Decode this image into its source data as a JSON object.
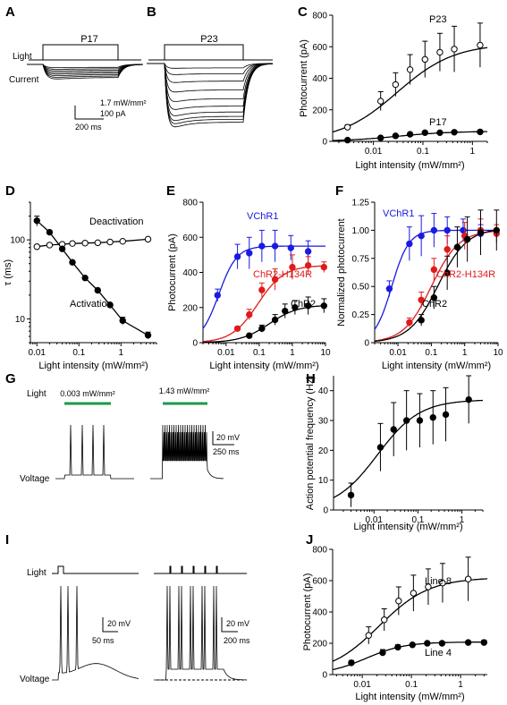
{
  "panels": {
    "A": {
      "letter": "A",
      "title": "P17",
      "light_label": "Light",
      "current_label": "Current",
      "scale_power": "1.7 mW/mm²",
      "scale_current": "100 pA",
      "scale_time": "200 ms"
    },
    "B": {
      "letter": "B",
      "title": "P23"
    },
    "C": {
      "letter": "C",
      "ylabel": "Photocurrent (pA)",
      "xlabel": "Light intensity (mW/mm²)",
      "label_p23": "P23",
      "label_p17": "P17"
    },
    "D": {
      "letter": "D",
      "ylabel": "τ (ms)",
      "xlabel": "Light intensity (mW/mm²)",
      "label_deact": "Deactivation",
      "label_act": "Activation"
    },
    "E": {
      "letter": "E",
      "ylabel": "Photocurrent (pA)",
      "xlabel": "Light intensity (mW/mm²)",
      "label_vchr1": "VChR1",
      "label_h134r": "ChR2-H134R",
      "label_chr2": "ChR2"
    },
    "F": {
      "letter": "F",
      "ylabel": "Normalized photocurrent",
      "xlabel": "Light intensity (mW/mm²)",
      "label_vchr1": "VChR1",
      "label_h134r": "ChR2-H134R",
      "label_chr2": "ChR2"
    },
    "G": {
      "letter": "G",
      "light_label": "Light",
      "voltage_label": "Voltage",
      "stim1": "0.003 mW/mm²",
      "stim2": "1.43 mW/mm²",
      "scale_v": "20 mV",
      "scale_t": "250 ms"
    },
    "H": {
      "letter": "H",
      "ylabel": "Action potential frequency (Hz)",
      "xlabel": "Light intensity (mW/mm²)"
    },
    "I": {
      "letter": "I",
      "light_label": "Light",
      "voltage_label": "Voltage",
      "scale_v1": "20 mV",
      "scale_t1": "50 ms",
      "scale_v2": "20 mV",
      "scale_t2": "200 ms"
    },
    "J": {
      "letter": "J",
      "ylabel": "Photocurrent (pA)",
      "xlabel": "Light intensity (mW/mm²)",
      "label_line8": "Line 8",
      "label_line4": "Line 4"
    }
  },
  "colors": {
    "blue": "#1a1ae0",
    "red": "#e01a1a",
    "green": "#1a9a4a",
    "black": "#000000"
  },
  "chart_data": [
    {
      "id": "C",
      "type": "scatter",
      "xscale": "log",
      "xlim": [
        0.0015,
        2
      ],
      "ylim": [
        0,
        800
      ],
      "xticks": [
        0.01,
        0.1,
        1
      ],
      "xticklabels": [
        "0.01",
        "0.1",
        "1"
      ],
      "yticks": [
        0,
        200,
        400,
        600,
        800
      ],
      "series": [
        {
          "name": "P23",
          "marker": "open",
          "x": [
            0.003,
            0.014,
            0.028,
            0.055,
            0.11,
            0.22,
            0.43,
            1.43
          ],
          "y": [
            90,
            255,
            360,
            455,
            520,
            565,
            585,
            610
          ],
          "err": [
            15,
            60,
            75,
            95,
            115,
            120,
            145,
            140
          ]
        },
        {
          "name": "P17",
          "marker": "filled",
          "x": [
            0.003,
            0.014,
            0.028,
            0.055,
            0.11,
            0.22,
            0.43,
            1.43
          ],
          "y": [
            8,
            22,
            35,
            45,
            55,
            55,
            58,
            60
          ],
          "err": [
            3,
            5,
            6,
            6,
            8,
            6,
            6,
            8
          ]
        }
      ]
    },
    {
      "id": "D",
      "type": "scatter",
      "xscale": "log",
      "yscale": "log",
      "xlim": [
        0.007,
        7
      ],
      "ylim": [
        5,
        300
      ],
      "xticks": [
        0.01,
        0.1,
        1
      ],
      "xticklabels": [
        "0.01",
        "0.1",
        "1"
      ],
      "yticks": [
        10,
        100
      ],
      "yticklabels": [
        "10",
        "100"
      ],
      "series": [
        {
          "name": "Deactivation",
          "marker": "open",
          "x": [
            0.01,
            0.02,
            0.04,
            0.07,
            0.14,
            0.28,
            0.55,
            1.1,
            4.4
          ],
          "y": [
            82,
            86,
            88,
            90,
            91,
            92,
            94,
            96,
            102
          ],
          "err": [
            0,
            0,
            0,
            0,
            0,
            0,
            0,
            0,
            0
          ]
        },
        {
          "name": "Activation",
          "marker": "filled",
          "x": [
            0.01,
            0.02,
            0.04,
            0.07,
            0.14,
            0.28,
            0.55,
            1.1,
            4.4
          ],
          "y": [
            175,
            125,
            77,
            52,
            33,
            23,
            15,
            9.5,
            6.2
          ],
          "err": [
            25,
            0,
            0,
            0,
            0,
            0,
            0,
            1,
            0.6
          ]
        }
      ]
    },
    {
      "id": "E",
      "type": "scatter",
      "xscale": "log",
      "xlim": [
        0.002,
        10
      ],
      "ylim": [
        0,
        800
      ],
      "xticks": [
        0.01,
        0.1,
        1,
        10
      ],
      "xticklabels": [
        "0.01",
        "0.1",
        "1",
        "10"
      ],
      "yticks": [
        0,
        200,
        400,
        600,
        800
      ],
      "series": [
        {
          "name": "VChR1",
          "color": "blue",
          "x": [
            0.0055,
            0.022,
            0.05,
            0.12,
            0.3,
            0.9,
            3
          ],
          "y": [
            270,
            490,
            510,
            550,
            550,
            540,
            520
          ],
          "err": [
            35,
            70,
            90,
            90,
            90,
            70,
            60
          ]
        },
        {
          "name": "ChR2-H134R",
          "color": "red",
          "x": [
            0.022,
            0.05,
            0.12,
            0.3,
            1,
            3,
            9
          ],
          "y": [
            80,
            160,
            300,
            360,
            430,
            440,
            430
          ],
          "err": [
            10,
            30,
            40,
            60,
            70,
            50,
            30
          ]
        },
        {
          "name": "ChR2",
          "color": "black",
          "x": [
            0.05,
            0.12,
            0.3,
            0.6,
            1.2,
            3,
            9
          ],
          "y": [
            40,
            80,
            130,
            180,
            200,
            210,
            210
          ],
          "err": [
            10,
            20,
            30,
            40,
            40,
            50,
            40
          ]
        }
      ]
    },
    {
      "id": "F",
      "type": "scatter",
      "xscale": "log",
      "xlim": [
        0.002,
        10
      ],
      "ylim": [
        0,
        1.25
      ],
      "xticks": [
        0.01,
        0.1,
        1,
        10
      ],
      "xticklabels": [
        "0.01",
        "0.1",
        "1",
        "10"
      ],
      "yticks": [
        0,
        0.25,
        0.5,
        0.75,
        1,
        1.25
      ],
      "yticklabels": [
        "0",
        "0.25",
        "0.50",
        "0.75",
        "1.00",
        "1.25"
      ],
      "series": [
        {
          "name": "VChR1",
          "color": "blue",
          "x": [
            0.0055,
            0.022,
            0.05,
            0.12,
            0.3,
            0.9,
            3
          ],
          "y": [
            0.48,
            0.88,
            0.95,
            1.0,
            1.0,
            1.0,
            0.97
          ],
          "err": [
            0.07,
            0.15,
            0.18,
            0.15,
            0.12,
            0.1,
            0.08
          ]
        },
        {
          "name": "ChR2-H134R",
          "color": "red",
          "x": [
            0.022,
            0.05,
            0.12,
            0.3,
            1,
            3,
            9
          ],
          "y": [
            0.18,
            0.38,
            0.65,
            0.83,
            0.95,
            1.0,
            0.97
          ],
          "err": [
            0.04,
            0.07,
            0.1,
            0.12,
            0.12,
            0.1,
            0.08
          ]
        },
        {
          "name": "ChR2",
          "color": "black",
          "x": [
            0.05,
            0.12,
            0.3,
            0.6,
            1.2,
            3,
            9
          ],
          "y": [
            0.2,
            0.4,
            0.62,
            0.85,
            0.92,
            0.98,
            1.0
          ],
          "err": [
            0.05,
            0.1,
            0.15,
            0.18,
            0.2,
            0.2,
            0.18
          ]
        }
      ]
    },
    {
      "id": "H",
      "type": "scatter",
      "xscale": "log",
      "xlim": [
        0.0012,
        3
      ],
      "ylim": [
        0,
        45
      ],
      "xticks": [
        0.01,
        0.1,
        1
      ],
      "xticklabels": [
        "0.01",
        "0.1",
        "1"
      ],
      "yticks": [
        0,
        10,
        20,
        30,
        40
      ],
      "series": [
        {
          "name": "",
          "marker": "filled",
          "x": [
            0.003,
            0.014,
            0.028,
            0.055,
            0.11,
            0.22,
            0.43,
            1.43
          ],
          "y": [
            5,
            21,
            27,
            30,
            30,
            31,
            32,
            37
          ],
          "err": [
            4,
            8,
            9,
            10,
            9,
            9,
            9,
            8
          ]
        }
      ]
    },
    {
      "id": "J",
      "type": "scatter",
      "xscale": "log",
      "xlim": [
        0.0025,
        3.5
      ],
      "ylim": [
        0,
        800
      ],
      "xticks": [
        0.01,
        0.1,
        1
      ],
      "xticklabels": [
        "0.01",
        "0.1",
        "1"
      ],
      "yticks": [
        0,
        200,
        400,
        600,
        800
      ],
      "series": [
        {
          "name": "Line 8",
          "marker": "open",
          "x": [
            0.0135,
            0.028,
            0.055,
            0.11,
            0.22,
            0.43,
            1.43
          ],
          "y": [
            250,
            350,
            470,
            520,
            560,
            585,
            610
          ],
          "err": [
            55,
            70,
            90,
            115,
            115,
            125,
            140
          ]
        },
        {
          "name": "Line 4",
          "marker": "filled",
          "x": [
            0.006,
            0.026,
            0.053,
            0.105,
            0.21,
            0.42,
            1.43,
            3
          ],
          "y": [
            75,
            140,
            175,
            190,
            200,
            200,
            205,
            205
          ],
          "err": [
            15,
            20,
            15,
            10,
            10,
            10,
            10,
            15
          ]
        }
      ]
    }
  ]
}
